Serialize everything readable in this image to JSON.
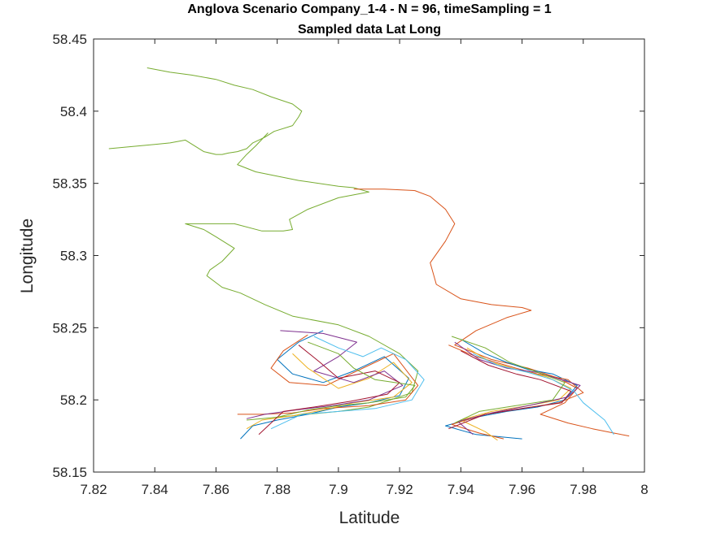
{
  "chart_data": {
    "type": "line",
    "title": "Anglova Scenario Company_1-4 - N = 96, timeSampling = 1",
    "subtitle": "Sampled data Lat Long",
    "xlabel": "Latitude",
    "ylabel": "Longitude",
    "xlim": [
      7.82,
      8.0
    ],
    "ylim": [
      58.15,
      58.45
    ],
    "xticks": [
      "7.82",
      "7.84",
      "7.86",
      "7.88",
      "7.9",
      "7.92",
      "7.94",
      "7.96",
      "7.98",
      "8"
    ],
    "yticks": [
      "58.15",
      "58.2",
      "58.25",
      "58.3",
      "58.35",
      "58.4",
      "58.45"
    ],
    "grid": false,
    "legend": "none",
    "colors": [
      "#0072bd",
      "#d95319",
      "#edb120",
      "#7e2f8e",
      "#77ac30",
      "#4dbeee",
      "#a2142f"
    ],
    "series": [
      {
        "color": "#77ac30",
        "x": [
          7.8375,
          7.845,
          7.852,
          7.86,
          7.866,
          7.872,
          7.878,
          7.885,
          7.888,
          7.887,
          7.885,
          7.879,
          7.876,
          7.872,
          7.87,
          7.867,
          7.864,
          7.862,
          7.86,
          7.856,
          7.85,
          7.845,
          7.84,
          7.835,
          7.83,
          7.825
        ],
        "y": [
          58.43,
          58.427,
          58.425,
          58.422,
          58.418,
          58.415,
          58.41,
          58.405,
          58.4,
          58.396,
          58.39,
          58.386,
          58.382,
          58.378,
          58.374,
          58.372,
          58.371,
          58.37,
          58.37,
          58.372,
          58.38,
          58.378,
          58.377,
          58.376,
          58.375,
          58.374
        ]
      },
      {
        "color": "#77ac30",
        "x": [
          7.877,
          7.873,
          7.87,
          7.867,
          7.873,
          7.887,
          7.9,
          7.905,
          7.91,
          7.9,
          7.89,
          7.884,
          7.885,
          7.882,
          7.875,
          7.866,
          7.85,
          7.856,
          7.86,
          7.866,
          7.862,
          7.858,
          7.857,
          7.862,
          7.868,
          7.876,
          7.885,
          7.9,
          7.91,
          7.92,
          7.926,
          7.924,
          7.91,
          7.9,
          7.89,
          7.88,
          7.87
        ],
        "y": [
          58.385,
          58.376,
          58.37,
          58.363,
          58.358,
          58.352,
          58.348,
          58.347,
          58.344,
          58.34,
          58.332,
          58.325,
          58.318,
          58.317,
          58.317,
          58.322,
          58.322,
          58.318,
          58.313,
          58.305,
          58.296,
          58.29,
          58.286,
          58.278,
          58.274,
          58.266,
          58.258,
          58.252,
          58.244,
          58.232,
          58.22,
          58.205,
          58.195,
          58.192,
          58.19,
          58.188,
          58.186
        ]
      },
      {
        "color": "#d95319",
        "x": [
          7.905,
          7.915,
          7.925,
          7.93,
          7.935,
          7.938,
          7.935,
          7.93,
          7.932,
          7.94,
          7.95,
          7.96,
          7.963,
          7.955,
          7.945,
          7.938,
          7.95,
          7.962,
          7.972,
          7.978,
          7.974,
          7.966,
          7.975,
          7.983,
          7.99,
          7.995
        ],
        "y": [
          58.346,
          58.346,
          58.345,
          58.341,
          58.332,
          58.322,
          58.31,
          58.295,
          58.28,
          58.27,
          58.266,
          58.264,
          58.262,
          58.257,
          58.248,
          58.238,
          58.228,
          58.222,
          58.215,
          58.208,
          58.198,
          58.19,
          58.184,
          58.18,
          58.177,
          58.175
        ]
      },
      {
        "color": "#0072bd",
        "x": [
          7.895,
          7.887,
          7.88,
          7.885,
          7.895,
          7.905,
          7.915,
          7.923,
          7.92,
          7.91,
          7.9,
          7.89,
          7.88,
          7.872,
          7.868
        ],
        "y": [
          58.248,
          58.24,
          58.228,
          58.218,
          58.212,
          58.22,
          58.23,
          58.215,
          58.203,
          58.198,
          58.195,
          58.19,
          58.186,
          58.182,
          58.173
        ]
      },
      {
        "color": "#d95319",
        "x": [
          7.89,
          7.882,
          7.878,
          7.884,
          7.896,
          7.91,
          7.918,
          7.926,
          7.922,
          7.91,
          7.895,
          7.885,
          7.875,
          7.867
        ],
        "y": [
          58.245,
          58.234,
          58.222,
          58.212,
          58.21,
          58.224,
          58.232,
          58.21,
          58.2,
          58.196,
          58.194,
          58.191,
          58.19,
          58.19
        ]
      },
      {
        "color": "#edb120",
        "x": [
          7.885,
          7.89,
          7.895,
          7.9,
          7.91,
          7.918,
          7.924,
          7.918,
          7.905,
          7.895,
          7.885,
          7.875,
          7.87
        ],
        "y": [
          58.232,
          58.222,
          58.215,
          58.208,
          58.215,
          58.226,
          58.212,
          58.202,
          58.198,
          58.193,
          58.189,
          58.186,
          58.18
        ]
      },
      {
        "color": "#7e2f8e",
        "x": [
          7.881,
          7.895,
          7.906,
          7.9,
          7.892,
          7.905,
          7.915,
          7.921,
          7.91,
          7.898,
          7.886,
          7.876,
          7.87
        ],
        "y": [
          58.248,
          58.246,
          58.24,
          58.23,
          58.22,
          58.212,
          58.22,
          58.21,
          58.2,
          58.196,
          58.193,
          58.19,
          58.187
        ]
      },
      {
        "color": "#4dbeee",
        "x": [
          7.892,
          7.9,
          7.908,
          7.914,
          7.922,
          7.928,
          7.924,
          7.912,
          7.9,
          7.888,
          7.878
        ],
        "y": [
          58.244,
          58.236,
          58.23,
          58.236,
          58.228,
          58.214,
          58.2,
          58.194,
          58.192,
          58.19,
          58.18
        ]
      },
      {
        "color": "#a2142f",
        "x": [
          7.887,
          7.894,
          7.9,
          7.912,
          7.92,
          7.916,
          7.904,
          7.892,
          7.882,
          7.874
        ],
        "y": [
          58.238,
          58.226,
          58.215,
          58.22,
          58.212,
          58.204,
          58.199,
          58.195,
          58.192,
          58.176
        ]
      },
      {
        "color": "#77ac30",
        "x": [
          7.89,
          7.9,
          7.905,
          7.912,
          7.925,
          7.922,
          7.91,
          7.9,
          7.89,
          7.88
        ],
        "y": [
          58.24,
          58.232,
          58.222,
          58.214,
          58.21,
          58.202,
          58.198,
          58.196,
          58.193,
          58.188
        ]
      },
      {
        "color": "#0072bd",
        "x": [
          7.94,
          7.948,
          7.955,
          7.962,
          7.97,
          7.978,
          7.974,
          7.965,
          7.955,
          7.945,
          7.935,
          7.945,
          7.96
        ],
        "y": [
          58.242,
          58.232,
          58.226,
          58.221,
          58.218,
          58.21,
          58.2,
          58.195,
          58.192,
          58.188,
          58.182,
          58.176,
          58.173
        ]
      },
      {
        "color": "#d95319",
        "x": [
          7.936,
          7.945,
          7.958,
          7.965,
          7.975,
          7.98,
          7.972,
          7.96,
          7.948,
          7.937,
          7.946,
          7.954
        ],
        "y": [
          58.238,
          58.23,
          58.222,
          58.218,
          58.214,
          58.205,
          58.198,
          58.194,
          58.19,
          58.183,
          58.177,
          58.173
        ]
      },
      {
        "color": "#edb120",
        "x": [
          7.942,
          7.95,
          7.96,
          7.968,
          7.976,
          7.972,
          7.962,
          7.95,
          7.94,
          7.948,
          7.952
        ],
        "y": [
          58.236,
          58.226,
          58.22,
          58.216,
          58.208,
          58.2,
          58.196,
          58.192,
          58.186,
          58.178,
          58.172
        ]
      },
      {
        "color": "#7e2f8e",
        "x": [
          7.938,
          7.946,
          7.955,
          7.965,
          7.979,
          7.975,
          7.962,
          7.95,
          7.939,
          7.944
        ],
        "y": [
          58.24,
          58.228,
          58.222,
          58.219,
          58.21,
          58.202,
          58.196,
          58.191,
          58.185,
          58.176
        ]
      },
      {
        "color": "#4dbeee",
        "x": [
          7.944,
          7.952,
          7.962,
          7.97,
          7.977,
          7.98,
          7.987,
          7.99
        ],
        "y": [
          58.232,
          58.224,
          58.219,
          58.214,
          58.206,
          58.198,
          58.186,
          58.176
        ]
      },
      {
        "color": "#a2142f",
        "x": [
          7.94,
          7.949,
          7.958,
          7.966,
          7.976,
          7.973,
          7.96,
          7.948,
          7.936
        ],
        "y": [
          58.234,
          58.224,
          58.218,
          58.214,
          58.206,
          58.198,
          58.194,
          58.19,
          58.18
        ]
      },
      {
        "color": "#77ac30",
        "x": [
          7.937,
          7.948,
          7.956,
          7.964,
          7.974,
          7.97,
          7.958,
          7.946,
          7.938
        ],
        "y": [
          58.244,
          58.236,
          58.226,
          58.22,
          58.212,
          58.2,
          58.196,
          58.192,
          58.184
        ]
      }
    ]
  }
}
